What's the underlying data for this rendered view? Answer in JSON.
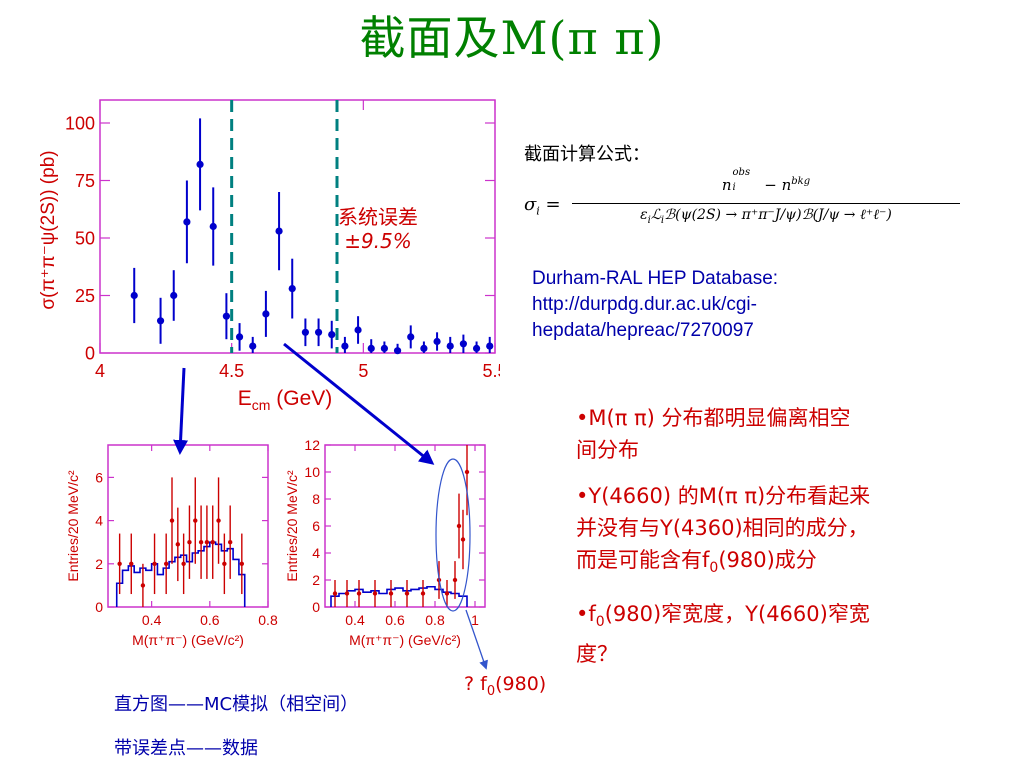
{
  "slide": {
    "title": "截面及M(π π)",
    "formula_heading": "截面计算公式：",
    "formula": {
      "lhs": "σ",
      "lhs_sub": "i",
      "num_a": "n",
      "num_a_sub": "i",
      "num_a_sup": "obs",
      "num_b": " − n",
      "num_b_sup": "bkg",
      "den_a": "ε",
      "den_a_sub": "i",
      "den_b": "ℒ",
      "den_b_sub": "i",
      "den_c": "ℬ(ψ(2S) → π⁺π⁻J/ψ)ℬ(J/ψ → ℓ⁺ℓ⁻)"
    },
    "database": [
      "Durham-RAL HEP Database:",
      "http://durpdg.dur.ac.uk/cgi-",
      "hepdata/hepreac/7270097"
    ],
    "systematic_label": "系统误差",
    "systematic_value": "±9.5%",
    "f0_question": "? f",
    "f0_sub": "0",
    "f0_mass": "(980)",
    "bullets": {
      "b1_line1": "•M(π π) 分布都明显偏离相空",
      "b1_line2": "间分布",
      "b2_line1": "•Y(4660) 的M(π π)分布看起来",
      "b2_line2": "并没有与Y(4360)相同的成分，",
      "b2_line3a": "而是可能含有f",
      "b2_line3sub": "0",
      "b2_line3b": "(980)成分",
      "b3_line1a": "•f",
      "b3_line1sub": "0",
      "b3_line1b": "(980)窄宽度，Y(4660)窄宽",
      "b3_line2": "度？"
    },
    "legend_histogram": "直方图——MC模拟（相空间）",
    "legend_points": "带误差点——数据"
  },
  "colors": {
    "title": "#008000",
    "axis_frame": "#cc33cc",
    "axis_text": "#cc0000",
    "data_points": "#0000cc",
    "data_points_mass": "#cc0000",
    "mc_histogram": "#0000cc",
    "dashed_lines": "#008080",
    "arrows": "#0000cc"
  },
  "chart_data": [
    {
      "type": "scatter",
      "ylabel": "σ(π⁺π⁻ψ(2S)) (pb)",
      "xlabel_main": "E",
      "xlabel_sub": "cm",
      "xlabel_unit": " (GeV)",
      "xlim": [
        4.0,
        5.5
      ],
      "ylim": [
        0,
        110
      ],
      "x_ticks": [
        4,
        4.5,
        5,
        5.5
      ],
      "x_tick_labels": [
        "4",
        "4.5",
        "5",
        "5.5"
      ],
      "y_ticks": [
        0,
        25,
        50,
        75,
        100
      ],
      "y_tick_labels": [
        "0",
        "25",
        "50",
        "75",
        "100"
      ],
      "dashed_lines_x": [
        4.5,
        4.9
      ],
      "points": [
        {
          "x": 4.13,
          "y": 25,
          "err_up": 12,
          "err_down": 12
        },
        {
          "x": 4.23,
          "y": 14,
          "err_up": 10,
          "err_down": 10
        },
        {
          "x": 4.28,
          "y": 25,
          "err_up": 11,
          "err_down": 11
        },
        {
          "x": 4.33,
          "y": 57,
          "err_up": 18,
          "err_down": 18
        },
        {
          "x": 4.38,
          "y": 82,
          "err_up": 20,
          "err_down": 20
        },
        {
          "x": 4.43,
          "y": 55,
          "err_up": 17,
          "err_down": 17
        },
        {
          "x": 4.48,
          "y": 16,
          "err_up": 10,
          "err_down": 10
        },
        {
          "x": 4.53,
          "y": 7,
          "err_up": 6,
          "err_down": 6
        },
        {
          "x": 4.58,
          "y": 3,
          "err_up": 4,
          "err_down": 3
        },
        {
          "x": 4.63,
          "y": 17,
          "err_up": 10,
          "err_down": 10
        },
        {
          "x": 4.68,
          "y": 53,
          "err_up": 17,
          "err_down": 17
        },
        {
          "x": 4.73,
          "y": 28,
          "err_up": 13,
          "err_down": 13
        },
        {
          "x": 4.78,
          "y": 9,
          "err_up": 6,
          "err_down": 6
        },
        {
          "x": 4.83,
          "y": 9,
          "err_up": 6,
          "err_down": 6
        },
        {
          "x": 4.88,
          "y": 8,
          "err_up": 6,
          "err_down": 6
        },
        {
          "x": 4.93,
          "y": 3,
          "err_up": 4,
          "err_down": 3
        },
        {
          "x": 4.98,
          "y": 10,
          "err_up": 6,
          "err_down": 6
        },
        {
          "x": 5.03,
          "y": 2,
          "err_up": 4,
          "err_down": 2
        },
        {
          "x": 5.08,
          "y": 2,
          "err_up": 3,
          "err_down": 2
        },
        {
          "x": 5.13,
          "y": 1,
          "err_up": 3,
          "err_down": 1
        },
        {
          "x": 5.18,
          "y": 7,
          "err_up": 5,
          "err_down": 5
        },
        {
          "x": 5.23,
          "y": 2,
          "err_up": 3,
          "err_down": 2
        },
        {
          "x": 5.28,
          "y": 5,
          "err_up": 4,
          "err_down": 4
        },
        {
          "x": 5.33,
          "y": 3,
          "err_up": 4,
          "err_down": 3
        },
        {
          "x": 5.38,
          "y": 4,
          "err_up": 4,
          "err_down": 4
        },
        {
          "x": 5.43,
          "y": 2,
          "err_up": 3,
          "err_down": 2
        },
        {
          "x": 5.48,
          "y": 3,
          "err_up": 4,
          "err_down": 3
        }
      ]
    },
    {
      "type": "scatter",
      "ylabel": "Entries/20 MeV/c²",
      "xlabel": "M(π⁺π⁻) (GeV/c²)",
      "xlim": [
        0.25,
        0.8
      ],
      "ylim": [
        0,
        7.5
      ],
      "x_ticks": [
        0.4,
        0.6,
        0.8
      ],
      "x_tick_labels": [
        "0.4",
        "0.6",
        "0.8"
      ],
      "y_ticks": [
        0,
        2,
        4,
        6
      ],
      "y_tick_labels": [
        "0",
        "2",
        "4",
        "6"
      ],
      "mc_histogram": {
        "bin_edges": [
          0.28,
          0.3,
          0.32,
          0.34,
          0.36,
          0.38,
          0.4,
          0.42,
          0.44,
          0.46,
          0.48,
          0.5,
          0.52,
          0.54,
          0.56,
          0.58,
          0.6,
          0.62,
          0.64,
          0.66,
          0.68,
          0.7,
          0.72
        ],
        "values": [
          1.1,
          1.7,
          1.9,
          1.6,
          1.8,
          1.7,
          2.0,
          1.5,
          1.8,
          2.1,
          2.3,
          2.4,
          2.1,
          2.5,
          2.6,
          2.8,
          3.0,
          2.9,
          2.6,
          2.7,
          2.2,
          1.5
        ]
      },
      "points": [
        {
          "x": 0.29,
          "y": 2.0,
          "err": 1.4
        },
        {
          "x": 0.33,
          "y": 2.0,
          "err": 1.4
        },
        {
          "x": 0.37,
          "y": 1.0,
          "err": 1.0
        },
        {
          "x": 0.41,
          "y": 2.0,
          "err": 1.4
        },
        {
          "x": 0.45,
          "y": 2.0,
          "err": 1.4
        },
        {
          "x": 0.47,
          "y": 4.0,
          "err": 2.0
        },
        {
          "x": 0.49,
          "y": 2.9,
          "err": 1.7
        },
        {
          "x": 0.51,
          "y": 2.0,
          "err": 1.4
        },
        {
          "x": 0.53,
          "y": 3.0,
          "err": 1.7
        },
        {
          "x": 0.55,
          "y": 4.0,
          "err": 2.0
        },
        {
          "x": 0.57,
          "y": 3.0,
          "err": 1.7
        },
        {
          "x": 0.59,
          "y": 3.0,
          "err": 1.7
        },
        {
          "x": 0.61,
          "y": 3.0,
          "err": 1.7
        },
        {
          "x": 0.63,
          "y": 4.0,
          "err": 2.0
        },
        {
          "x": 0.65,
          "y": 2.0,
          "err": 1.4
        },
        {
          "x": 0.67,
          "y": 3.0,
          "err": 1.7
        },
        {
          "x": 0.71,
          "y": 2.0,
          "err": 1.4
        }
      ]
    },
    {
      "type": "scatter",
      "ylabel": "Entries/20 MeV/c²",
      "xlabel": "M(π⁺π⁻) (GeV/c²)",
      "xlim": [
        0.25,
        1.05
      ],
      "ylim": [
        0,
        12
      ],
      "x_ticks": [
        0.4,
        0.6,
        0.8,
        1
      ],
      "x_tick_labels": [
        "0.4",
        "0.6",
        "0.8",
        "1"
      ],
      "y_ticks": [
        0,
        2,
        4,
        6,
        8,
        10,
        12
      ],
      "y_tick_labels": [
        "0",
        "2",
        "4",
        "6",
        "8",
        "10",
        "12"
      ],
      "mc_histogram": {
        "bin_edges": [
          0.28,
          0.32,
          0.36,
          0.4,
          0.44,
          0.48,
          0.52,
          0.56,
          0.6,
          0.64,
          0.68,
          0.72,
          0.76,
          0.8,
          0.84,
          0.88,
          0.92,
          0.96
        ],
        "values": [
          0.8,
          1.0,
          1.2,
          1.3,
          1.1,
          1.2,
          1.0,
          1.3,
          1.4,
          1.2,
          1.3,
          1.4,
          1.5,
          1.3,
          1.1,
          1.0,
          0.8
        ]
      },
      "points": [
        {
          "x": 0.3,
          "y": 1.0,
          "err": 1.0
        },
        {
          "x": 0.36,
          "y": 1.0,
          "err": 1.0
        },
        {
          "x": 0.42,
          "y": 1.0,
          "err": 1.0
        },
        {
          "x": 0.5,
          "y": 1.0,
          "err": 1.0
        },
        {
          "x": 0.58,
          "y": 1.0,
          "err": 1.0
        },
        {
          "x": 0.66,
          "y": 1.0,
          "err": 1.0
        },
        {
          "x": 0.74,
          "y": 1.0,
          "err": 1.0
        },
        {
          "x": 0.82,
          "y": 2.0,
          "err": 1.4
        },
        {
          "x": 0.86,
          "y": 1.0,
          "err": 1.0
        },
        {
          "x": 0.9,
          "y": 2.0,
          "err": 1.4
        },
        {
          "x": 0.92,
          "y": 6.0,
          "err": 2.4
        },
        {
          "x": 0.94,
          "y": 5.0,
          "err": 2.2
        },
        {
          "x": 0.96,
          "y": 10.0,
          "err": 3.2
        }
      ]
    }
  ]
}
